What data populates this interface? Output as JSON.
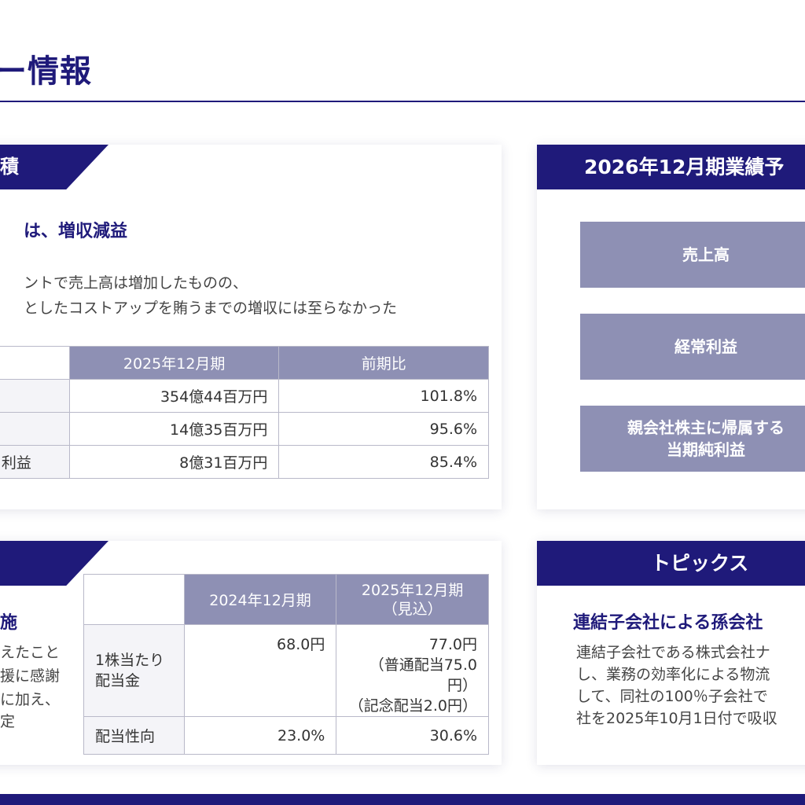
{
  "page": {
    "title": "ー情報"
  },
  "results": {
    "tab": "積",
    "headline": "は、増収減益",
    "text_lines": [
      "ントで売上高は増加したものの、",
      "としたコストアップを賄うまでの増収には至らなかった"
    ],
    "table": {
      "headers": [
        "",
        "2025年12月期",
        "前期比"
      ],
      "rows": [
        [
          "",
          "354億44百万円",
          "101.8%"
        ],
        [
          "",
          "14億35百万円",
          "95.6%"
        ],
        [
          "利益",
          "8億31百万円",
          "85.4%"
        ]
      ]
    }
  },
  "forecast": {
    "banner": "2026年12月期業績予",
    "items": [
      "売上高",
      "経常利益",
      "親会社株主に帰属する\n当期純利益"
    ]
  },
  "dividend": {
    "headline": "施",
    "text_lines": [
      "えたこと",
      "援に感謝",
      "に加え、",
      "定"
    ],
    "table": {
      "headers": [
        "",
        "2024年12月期",
        "2025年12月期\n（見込）"
      ],
      "rows": [
        [
          "1株当たり\n配当金",
          "68.0円",
          "77.0円\n（普通配当75.0円）\n（記念配当2.0円）"
        ],
        [
          "配当性向",
          "23.0%",
          "30.6%"
        ]
      ]
    }
  },
  "topics": {
    "banner": "トピックス",
    "headline": "連結子会社による孫会社",
    "text_lines": [
      "連結子会社である株式会社ナ",
      "し、業務の効率化による物流",
      "して、同社の100％子会社で",
      "社を2025年10月1日付で吸収"
    ]
  },
  "colors": {
    "navy": "#1f1a7a",
    "header_gray": "#8e90b4"
  }
}
